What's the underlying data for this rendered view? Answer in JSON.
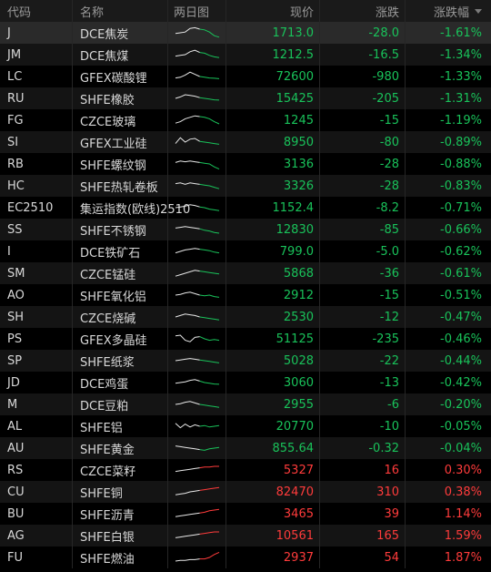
{
  "header": {
    "code": "代码",
    "name": "名称",
    "chart": "两日图",
    "price": "现价",
    "change": "涨跌",
    "pct": "涨跌幅"
  },
  "colors": {
    "up": "#ff3b3b",
    "down": "#19c25a"
  },
  "rows": [
    {
      "code": "J",
      "name": "DCE焦炭",
      "price": "1713.0",
      "change": "-28.0",
      "pct": "-1.61%",
      "dir": "down",
      "spark": [
        0.55,
        0.5,
        0.45,
        0.2,
        0.15,
        0.25,
        0.3,
        0.45,
        0.7,
        0.8
      ]
    },
    {
      "code": "JM",
      "name": "DCE焦煤",
      "price": "1212.5",
      "change": "-16.5",
      "pct": "-1.34%",
      "dir": "down",
      "spark": [
        0.6,
        0.55,
        0.5,
        0.3,
        0.2,
        0.35,
        0.4,
        0.55,
        0.65,
        0.7
      ]
    },
    {
      "code": "LC",
      "name": "GFEX碳酸锂",
      "price": "72600",
      "change": "-980",
      "pct": "-1.33%",
      "dir": "down",
      "spark": [
        0.6,
        0.55,
        0.4,
        0.2,
        0.35,
        0.5,
        0.55,
        0.6,
        0.62,
        0.65
      ]
    },
    {
      "code": "RU",
      "name": "SHFE橡胶",
      "price": "15425",
      "change": "-205",
      "pct": "-1.31%",
      "dir": "down",
      "spark": [
        0.5,
        0.4,
        0.25,
        0.3,
        0.35,
        0.45,
        0.5,
        0.55,
        0.6,
        0.62
      ]
    },
    {
      "code": "FG",
      "name": "CZCE玻璃",
      "price": "1245",
      "change": "-15",
      "pct": "-1.19%",
      "dir": "down",
      "spark": [
        0.7,
        0.6,
        0.4,
        0.3,
        0.2,
        0.25,
        0.3,
        0.4,
        0.6,
        0.75
      ]
    },
    {
      "code": "SI",
      "name": "GFEX工业硅",
      "price": "8950",
      "change": "-80",
      "pct": "-0.89%",
      "dir": "down",
      "spark": [
        0.6,
        0.2,
        0.5,
        0.3,
        0.25,
        0.45,
        0.5,
        0.55,
        0.6,
        0.65
      ]
    },
    {
      "code": "RB",
      "name": "SHFE螺纹钢",
      "price": "3136",
      "change": "-28",
      "pct": "-0.88%",
      "dir": "down",
      "spark": [
        0.4,
        0.3,
        0.35,
        0.3,
        0.35,
        0.4,
        0.45,
        0.5,
        0.7,
        0.85
      ]
    },
    {
      "code": "HC",
      "name": "SHFE热轧卷板",
      "price": "3326",
      "change": "-28",
      "pct": "-0.83%",
      "dir": "down",
      "spark": [
        0.35,
        0.3,
        0.4,
        0.3,
        0.35,
        0.4,
        0.45,
        0.5,
        0.6,
        0.7
      ]
    },
    {
      "code": "EC2510",
      "name": "集运指数(欧线)2510",
      "price": "1152.4",
      "change": "-8.2",
      "pct": "-0.71%",
      "dir": "down",
      "spark": [
        0.5,
        0.45,
        0.4,
        0.3,
        0.35,
        0.45,
        0.5,
        0.6,
        0.65,
        0.7
      ]
    },
    {
      "code": "SS",
      "name": "SHFE不锈钢",
      "price": "12830",
      "change": "-85",
      "pct": "-0.66%",
      "dir": "down",
      "spark": [
        0.4,
        0.35,
        0.3,
        0.35,
        0.4,
        0.45,
        0.55,
        0.6,
        0.7,
        0.75
      ]
    },
    {
      "code": "I",
      "name": "DCE铁矿石",
      "price": "799.0",
      "change": "-5.0",
      "pct": "-0.62%",
      "dir": "down",
      "spark": [
        0.6,
        0.5,
        0.4,
        0.35,
        0.3,
        0.35,
        0.4,
        0.45,
        0.55,
        0.6
      ]
    },
    {
      "code": "SM",
      "name": "CZCE锰硅",
      "price": "5868",
      "change": "-36",
      "pct": "-0.61%",
      "dir": "down",
      "spark": [
        0.7,
        0.6,
        0.5,
        0.4,
        0.3,
        0.35,
        0.4,
        0.45,
        0.5,
        0.55
      ]
    },
    {
      "code": "AO",
      "name": "SHFE氧化铝",
      "price": "2912",
      "change": "-15",
      "pct": "-0.51%",
      "dir": "down",
      "spark": [
        0.5,
        0.45,
        0.35,
        0.3,
        0.4,
        0.5,
        0.55,
        0.5,
        0.6,
        0.65
      ]
    },
    {
      "code": "SH",
      "name": "CZCE烧碱",
      "price": "2530",
      "change": "-12",
      "pct": "-0.47%",
      "dir": "down",
      "spark": [
        0.5,
        0.4,
        0.3,
        0.35,
        0.4,
        0.5,
        0.55,
        0.6,
        0.65,
        0.7
      ]
    },
    {
      "code": "PS",
      "name": "GFEX多晶硅",
      "price": "51125",
      "change": "-235",
      "pct": "-0.46%",
      "dir": "down",
      "spark": [
        0.3,
        0.25,
        0.6,
        0.7,
        0.4,
        0.35,
        0.5,
        0.6,
        0.55,
        0.6
      ]
    },
    {
      "code": "SP",
      "name": "SHFE纸浆",
      "price": "5028",
      "change": "-22",
      "pct": "-0.44%",
      "dir": "down",
      "spark": [
        0.5,
        0.45,
        0.4,
        0.35,
        0.4,
        0.45,
        0.5,
        0.55,
        0.6,
        0.65
      ]
    },
    {
      "code": "JD",
      "name": "DCE鸡蛋",
      "price": "3060",
      "change": "-13",
      "pct": "-0.42%",
      "dir": "down",
      "spark": [
        0.55,
        0.5,
        0.45,
        0.35,
        0.3,
        0.4,
        0.5,
        0.55,
        0.6,
        0.62
      ]
    },
    {
      "code": "M",
      "name": "DCE豆粕",
      "price": "2955",
      "change": "-6",
      "pct": "-0.20%",
      "dir": "down",
      "spark": [
        0.5,
        0.45,
        0.35,
        0.3,
        0.4,
        0.5,
        0.55,
        0.6,
        0.65,
        0.7
      ]
    },
    {
      "code": "AL",
      "name": "SHFE铝",
      "price": "20770",
      "change": "-10",
      "pct": "-0.05%",
      "dir": "down",
      "spark": [
        0.3,
        0.6,
        0.35,
        0.55,
        0.4,
        0.5,
        0.45,
        0.55,
        0.5,
        0.45
      ]
    },
    {
      "code": "AU",
      "name": "SHFE黄金",
      "price": "855.64",
      "change": "-0.32",
      "pct": "-0.04%",
      "dir": "down",
      "spark": [
        0.35,
        0.4,
        0.45,
        0.5,
        0.55,
        0.6,
        0.65,
        0.55,
        0.5,
        0.45
      ]
    },
    {
      "code": "RS",
      "name": "CZCE菜籽",
      "price": "5327",
      "change": "16",
      "pct": "0.30%",
      "dir": "up",
      "spark": [
        0.6,
        0.55,
        0.5,
        0.45,
        0.4,
        0.35,
        0.3,
        0.3,
        0.25,
        0.25
      ]
    },
    {
      "code": "CU",
      "name": "SHFE铜",
      "price": "82470",
      "change": "310",
      "pct": "0.38%",
      "dir": "up",
      "spark": [
        0.7,
        0.65,
        0.6,
        0.5,
        0.45,
        0.4,
        0.35,
        0.3,
        0.25,
        0.2
      ]
    },
    {
      "code": "BU",
      "name": "SHFE沥青",
      "price": "3465",
      "change": "39",
      "pct": "1.14%",
      "dir": "up",
      "spark": [
        0.7,
        0.65,
        0.6,
        0.55,
        0.5,
        0.45,
        0.4,
        0.3,
        0.25,
        0.2
      ]
    },
    {
      "code": "AG",
      "name": "SHFE白银",
      "price": "10561",
      "change": "165",
      "pct": "1.59%",
      "dir": "up",
      "spark": [
        0.65,
        0.6,
        0.55,
        0.5,
        0.45,
        0.4,
        0.35,
        0.3,
        0.25,
        0.25
      ]
    },
    {
      "code": "FU",
      "name": "SHFE燃油",
      "price": "2937",
      "change": "54",
      "pct": "1.87%",
      "dir": "up",
      "spark": [
        0.75,
        0.7,
        0.7,
        0.65,
        0.65,
        0.6,
        0.6,
        0.5,
        0.3,
        0.15
      ]
    }
  ]
}
